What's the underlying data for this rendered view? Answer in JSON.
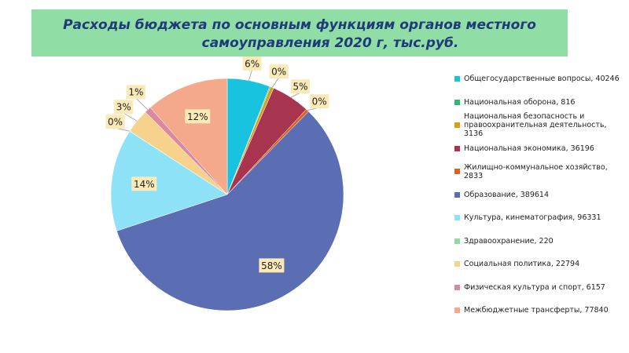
{
  "chart_data": {
    "type": "pie",
    "title": [
      "Расходы бюджета по основным функциям органов местного",
      "самоуправления  2020 г, тыс.руб."
    ],
    "categories": [
      "Общегосударственные вопросы, 40246",
      "Национальная оборона, 816",
      "Национальная безопасность и правоохранительная деятельность, 3136",
      "Национальная экономика, 36196",
      "Жилищно-коммунальное хозяйство, 2833",
      "Образование, 389614",
      "Культура, кинематография, 96331",
      "Здравоохранение, 220",
      "Социальная политика, 22794",
      "Физическая культура и спорт, 6157",
      "Межбюджетные трансферты, 77840"
    ],
    "values": [
      40246,
      816,
      3136,
      36196,
      2833,
      389614,
      96331,
      220,
      22794,
      6157,
      77840
    ],
    "value_labels": [
      "6%",
      null,
      "0%",
      "5%",
      "0%",
      "58%",
      "14%",
      "0%",
      "3%",
      "1%",
      "12%"
    ],
    "colors": [
      "#17c3df",
      "#2eb872",
      "#d4a017",
      "#a8354f",
      "#e06020",
      "#5b6db3",
      "#8ee2f7",
      "#8fd8a8",
      "#f7d28c",
      "#d98aa0",
      "#f4a98a"
    ],
    "legend": "right"
  }
}
